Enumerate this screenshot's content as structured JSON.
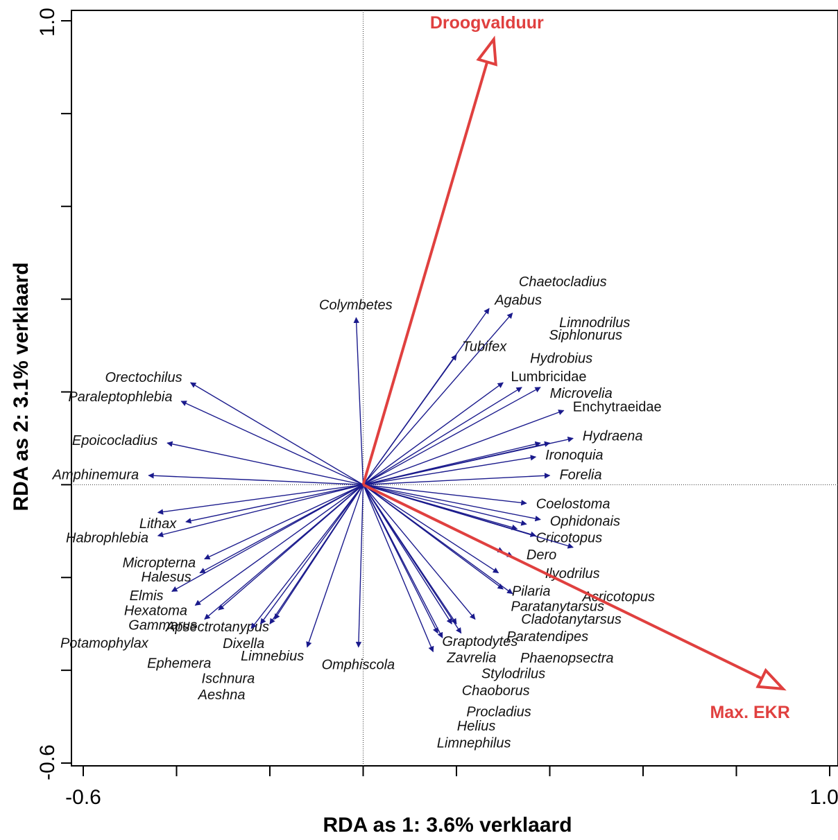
{
  "chart_data": {
    "type": "scatter",
    "subtype": "rda-biplot",
    "xlabel": "RDA as 1: 3.6% verklaard",
    "ylabel": "RDA as 2: 3.1% verklaard",
    "xlim": [
      -0.6,
      1.0
    ],
    "ylim": [
      -0.6,
      1.0
    ],
    "x_tick_labels": [
      "-0.6",
      "1.0"
    ],
    "y_tick_labels": [
      "1.0",
      "-0.6"
    ],
    "grid": false,
    "origin_lines": true,
    "colors": {
      "species": "#1a1a8c",
      "environment": "#e0403f"
    },
    "environmental_vectors": [
      {
        "name": "Droogvalduur",
        "x": 0.28,
        "y": 0.96
      },
      {
        "name": "Max. EKR",
        "x": 0.9,
        "y": -0.44
      }
    ],
    "species_vectors": [
      {
        "name": "Colymbetes",
        "x": -0.015,
        "y": 0.36
      },
      {
        "name": "Agabus",
        "x": 0.27,
        "y": 0.38
      },
      {
        "name": "Chaetocladius",
        "x": 0.32,
        "y": 0.37
      },
      {
        "name": "Tubifex",
        "x": 0.2,
        "y": 0.28
      },
      {
        "name": "Lumbricidae",
        "x": 0.3,
        "y": 0.22
      },
      {
        "name": "Hydrobius",
        "x": 0.34,
        "y": 0.21
      },
      {
        "name": "Siphlonurus",
        "x": 0.38,
        "y": 0.21
      },
      {
        "name": "Enchytraeidae",
        "x": 0.43,
        "y": 0.16
      },
      {
        "name": "Hydraena",
        "x": 0.45,
        "y": 0.1
      },
      {
        "name": "Microvelia",
        "x": 0.38,
        "y": 0.09
      },
      {
        "name": "Limnodrilus",
        "x": 0.4,
        "y": 0.09
      },
      {
        "name": "Ironoquia",
        "x": 0.37,
        "y": 0.06
      },
      {
        "name": "Forelia",
        "x": 0.4,
        "y": 0.02
      },
      {
        "name": "Coelostoma",
        "x": 0.35,
        "y": -0.04
      },
      {
        "name": "Ophidonais",
        "x": 0.38,
        "y": -0.075
      },
      {
        "name": "Cricotopus",
        "x": 0.35,
        "y": -0.085
      },
      {
        "name": "Dero",
        "x": 0.33,
        "y": -0.095
      },
      {
        "name": "Ilyodrilus",
        "x": 0.37,
        "y": -0.11
      },
      {
        "name": "Acricotopus",
        "x": 0.45,
        "y": -0.135
      },
      {
        "name": "Pilaria",
        "x": 0.3,
        "y": -0.145
      },
      {
        "name": "Cladotanytarsus",
        "x": 0.32,
        "y": -0.155
      },
      {
        "name": "Paratendipes",
        "x": 0.29,
        "y": -0.19
      },
      {
        "name": "Paratanytarsus",
        "x": 0.3,
        "y": -0.225
      },
      {
        "name": "Phaenopsectra",
        "x": 0.32,
        "y": -0.235
      },
      {
        "name": "Stylodrilus",
        "x": 0.24,
        "y": -0.29
      },
      {
        "name": "Chaoborus",
        "x": 0.2,
        "y": -0.3
      },
      {
        "name": "Procladius",
        "x": 0.21,
        "y": -0.32
      },
      {
        "name": "Zavrelia",
        "x": 0.17,
        "y": -0.33
      },
      {
        "name": "Helius",
        "x": 0.19,
        "y": -0.3
      },
      {
        "name": "Graptodytes",
        "x": 0.16,
        "y": -0.32
      },
      {
        "name": "Limnephilus",
        "x": 0.15,
        "y": -0.36
      },
      {
        "name": "Omphiscola",
        "x": -0.01,
        "y": -0.35
      },
      {
        "name": "Limnebius",
        "x": -0.12,
        "y": -0.35
      },
      {
        "name": "Apsectrotanypus",
        "x": -0.19,
        "y": -0.29
      },
      {
        "name": "Dixella",
        "x": -0.2,
        "y": -0.3
      },
      {
        "name": "Ischnura",
        "x": -0.22,
        "y": -0.3
      },
      {
        "name": "Aeshna",
        "x": -0.24,
        "y": -0.31
      },
      {
        "name": "Ephemera",
        "x": -0.31,
        "y": -0.27
      },
      {
        "name": "Gammarus",
        "x": -0.34,
        "y": -0.29
      },
      {
        "name": "Hexatoma",
        "x": -0.36,
        "y": -0.26
      },
      {
        "name": "Elmis",
        "x": -0.41,
        "y": -0.23
      },
      {
        "name": "Micropterna",
        "x": -0.34,
        "y": -0.16
      },
      {
        "name": "Halesus",
        "x": -0.35,
        "y": -0.19
      },
      {
        "name": "Habrophlebia",
        "x": -0.44,
        "y": -0.11
      },
      {
        "name": "Lithax",
        "x": -0.38,
        "y": -0.08
      },
      {
        "name": "Potamophylax",
        "x": -0.44,
        "y": -0.06
      },
      {
        "name": "Amphinemura",
        "x": -0.46,
        "y": 0.02
      },
      {
        "name": "Epoicocladius",
        "x": -0.42,
        "y": 0.09
      },
      {
        "name": "Paraleptophlebia",
        "x": -0.39,
        "y": 0.18
      },
      {
        "name": "Orectochilus",
        "x": -0.37,
        "y": 0.22
      }
    ]
  }
}
